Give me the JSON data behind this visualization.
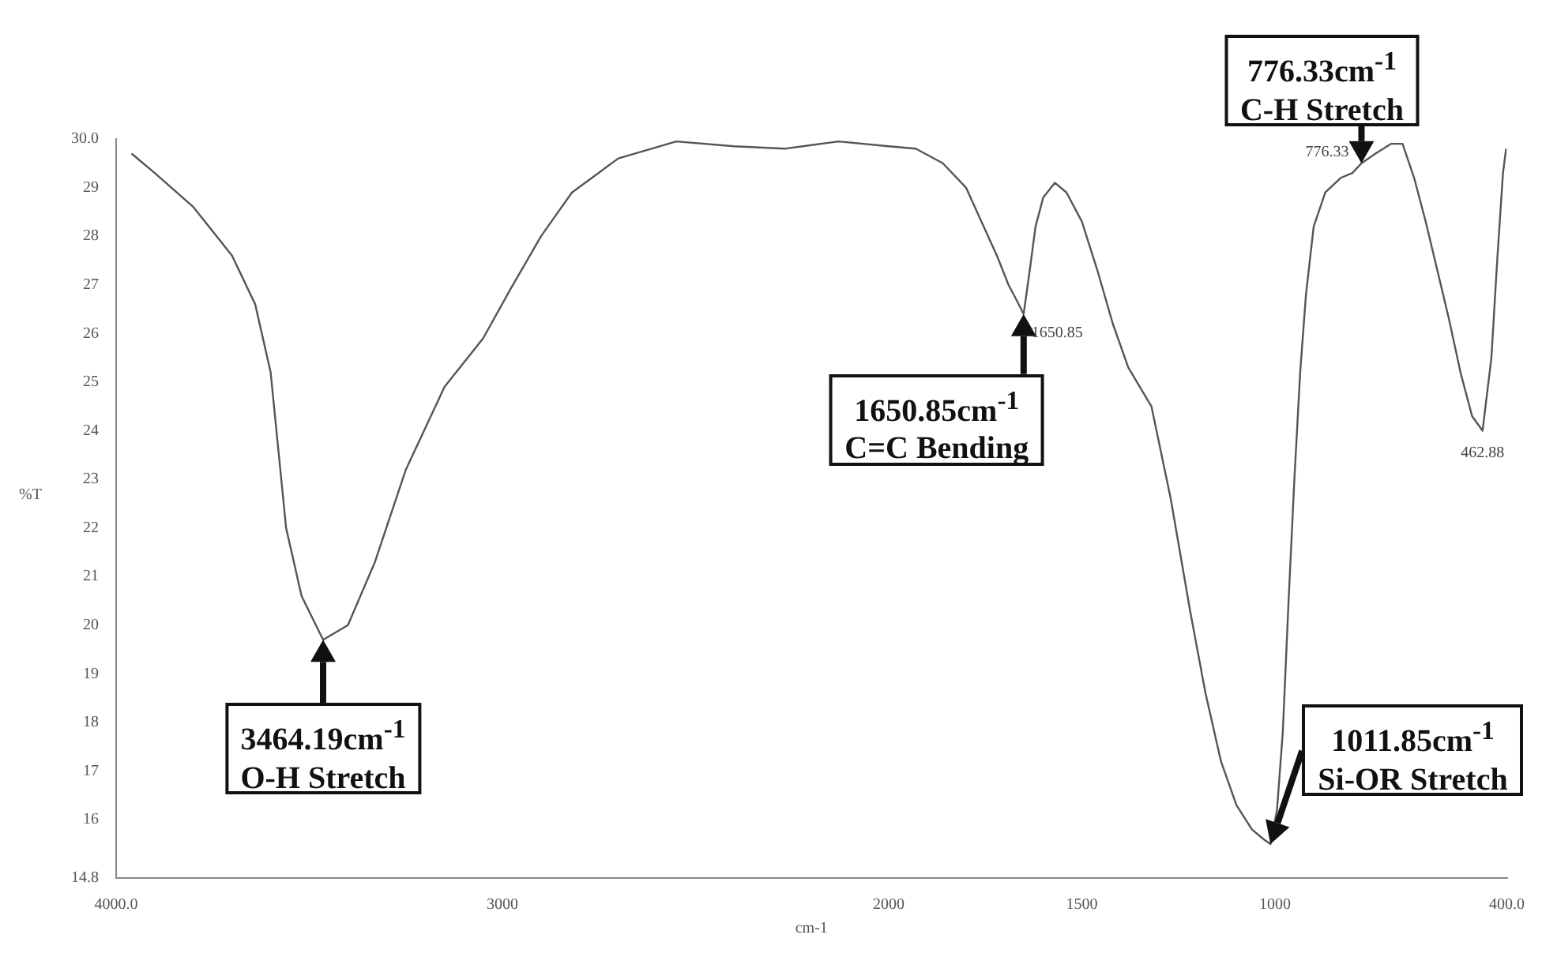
{
  "chart_data": {
    "type": "line",
    "xlabel": "cm-1",
    "ylabel": "%T",
    "x": [
      3960,
      3900,
      3800,
      3700,
      3640,
      3600,
      3560,
      3520,
      3464.19,
      3400,
      3330,
      3250,
      3150,
      3050,
      2980,
      2900,
      2820,
      2700,
      2550,
      2400,
      2270,
      2130,
      2000,
      1930,
      1860,
      1800,
      1760,
      1720,
      1690,
      1670,
      1650.85,
      1635,
      1620,
      1600,
      1570,
      1540,
      1500,
      1460,
      1420,
      1380,
      1320,
      1270,
      1220,
      1180,
      1140,
      1100,
      1060,
      1030,
      1011.85,
      995,
      980,
      965,
      950,
      935,
      920,
      900,
      870,
      830,
      800,
      776.33,
      740,
      700,
      670,
      640,
      610,
      580,
      550,
      520,
      490,
      462.88,
      440,
      425,
      410,
      402
    ],
    "values": [
      29.7,
      29.3,
      28.6,
      27.6,
      26.6,
      25.2,
      22.0,
      20.6,
      19.7,
      20.0,
      21.3,
      23.2,
      24.9,
      25.9,
      26.9,
      28.0,
      28.9,
      29.6,
      29.95,
      29.85,
      29.8,
      29.95,
      29.85,
      29.8,
      29.5,
      29.0,
      28.3,
      27.6,
      27.0,
      26.7,
      26.4,
      27.3,
      28.2,
      28.8,
      29.1,
      28.9,
      28.3,
      27.3,
      26.2,
      25.3,
      24.5,
      22.6,
      20.3,
      18.6,
      17.2,
      16.3,
      15.8,
      15.6,
      15.5,
      16.2,
      17.8,
      20.5,
      23.0,
      25.2,
      26.8,
      28.2,
      28.9,
      29.2,
      29.3,
      29.5,
      29.7,
      29.9,
      29.9,
      29.2,
      28.3,
      27.3,
      26.3,
      25.2,
      24.3,
      24.0,
      25.5,
      27.5,
      29.3,
      29.8
    ],
    "color": "#555555",
    "marker": "none",
    "grid": false,
    "legend": false,
    "xlim": [
      4000,
      400
    ],
    "xticks": [
      {
        "value": 4000,
        "label": "4000.0"
      },
      3000,
      2000,
      1500,
      1000,
      {
        "value": 400,
        "label": "400.0"
      }
    ],
    "ylim": [
      14.8,
      30
    ],
    "yticks": [
      14.8,
      16,
      17,
      18,
      19,
      20,
      21,
      22,
      23,
      24,
      25,
      26,
      27,
      28,
      29,
      {
        "value": 30,
        "label": "30.0"
      }
    ],
    "annotations": [
      {
        "text": "3464.19cm$^{-1}$\nO-H Stretch",
        "x": 3464.19,
        "y": 19.7
      },
      {
        "text": "1650.85cm$^{-1}$\nC=C Bending",
        "x": 1650.85,
        "y": 26.4
      },
      {
        "text": "1011.85cm$^{-1}$\nSi-OR Stretch",
        "x": 1011.85,
        "y": 15.5
      },
      {
        "text": "776.33cm$^{-1}$\nC-H Stretch",
        "x": 776.33,
        "y": 29.5
      },
      {
        "text": "1650.85",
        "x": 1650.85,
        "y": 26.4
      },
      {
        "text": "776.33",
        "x": 776.33,
        "y": 29.5
      },
      {
        "text": "462.88",
        "x": 462.88,
        "y": 24.0
      }
    ]
  }
}
